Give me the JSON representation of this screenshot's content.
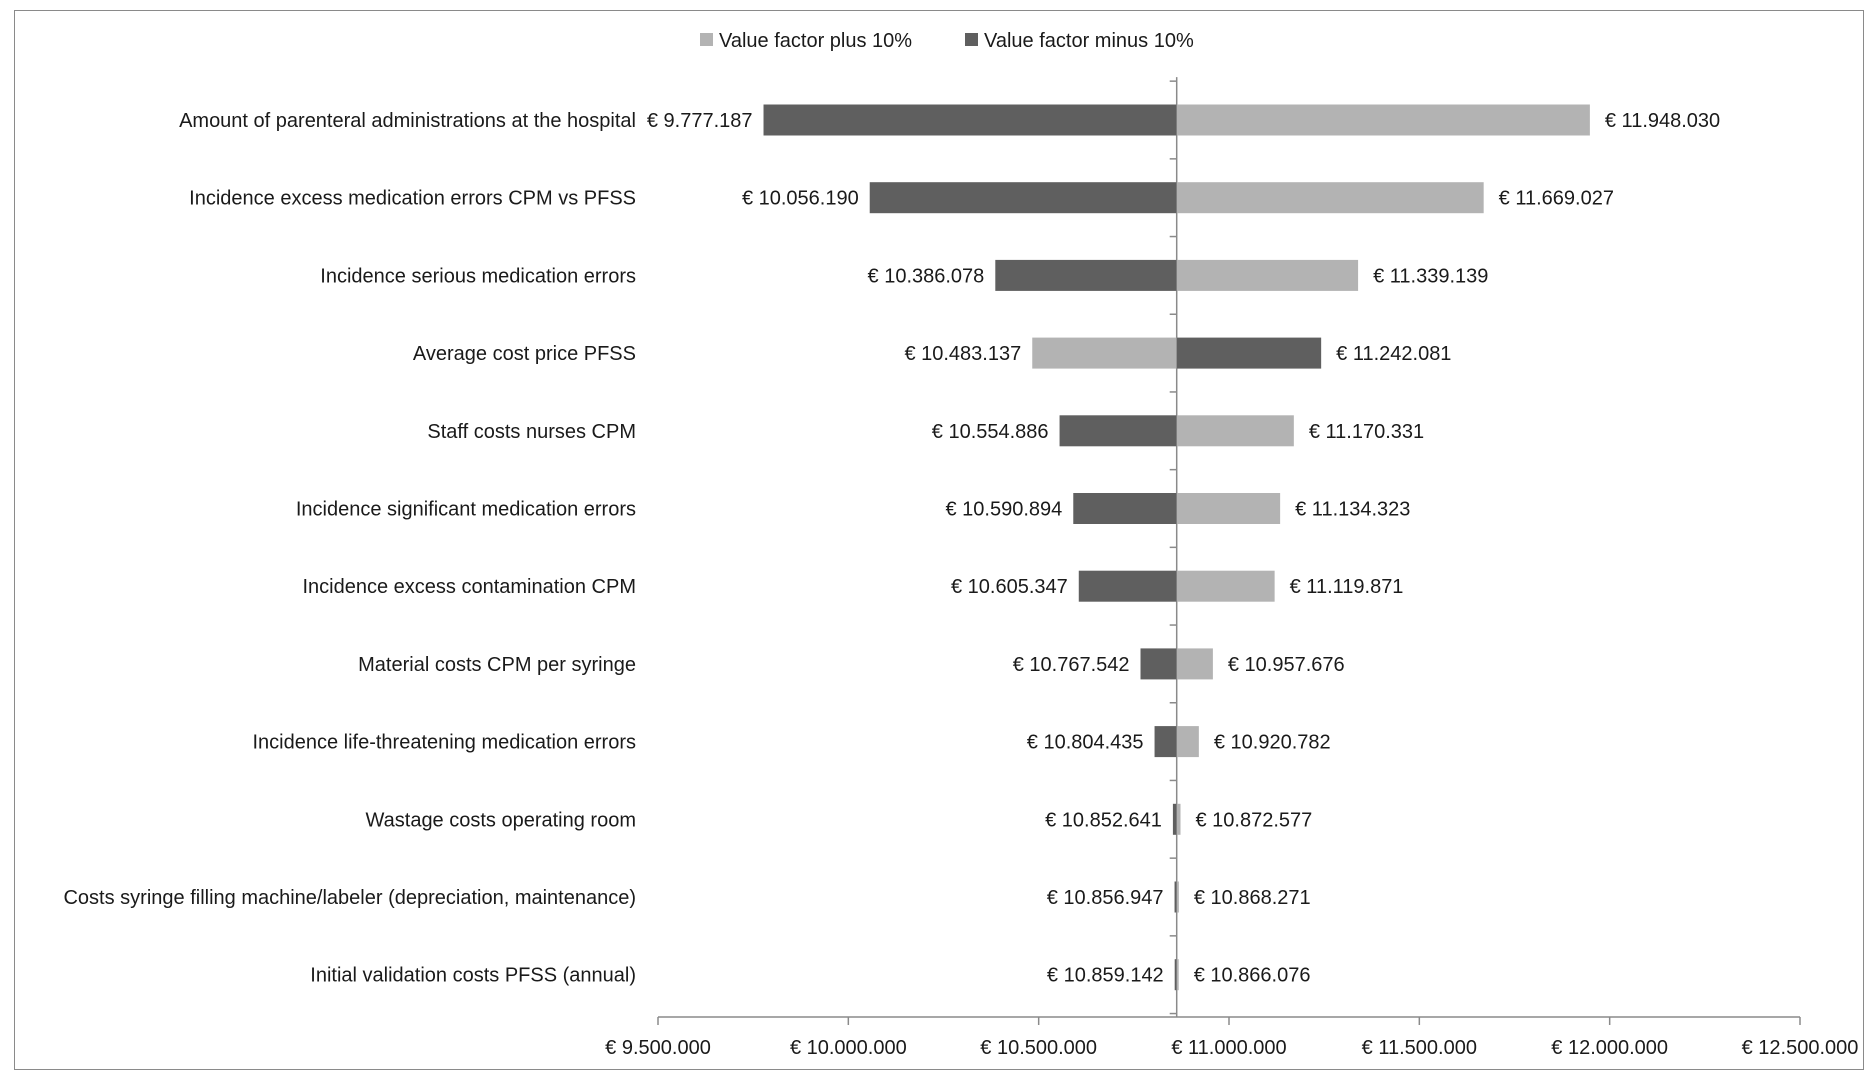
{
  "chart_data": {
    "type": "bar",
    "subtype": "tornado",
    "title": "",
    "xlabel": "",
    "ylabel": "",
    "baseline": 10862609,
    "xlim": [
      9500000,
      12500000
    ],
    "x_ticks": [
      9500000,
      10000000,
      10500000,
      11000000,
      11500000,
      12000000,
      12500000
    ],
    "x_tick_labels": [
      "€ 9.500.000",
      "€ 10.000.000",
      "€ 10.500.000",
      "€ 11.000.000",
      "€ 11.500.000",
      "€ 12.000.000",
      "€ 12.500.000"
    ],
    "legend_position": "top",
    "grid": false,
    "series": [
      {
        "name": "Value factor plus 10%",
        "color": "#b3b3b3"
      },
      {
        "name": "Value factor minus 10%",
        "color": "#5f5f5f"
      }
    ],
    "categories": [
      "Amount of parenteral administrations at the hospital",
      "Incidence excess medication errors CPM vs PFSS",
      "Incidence serious medication errors",
      "Average cost price PFSS",
      "Staff costs nurses CPM",
      "Incidence significant medication errors",
      "Incidence excess contamination CPM",
      "Material costs CPM per syringe",
      "Incidence life-threatening medication errors",
      "Wastage costs operating room",
      "Costs syringe filling machine/labeler (depreciation, maintenance)",
      "Initial validation costs PFSS (annual)"
    ],
    "rows": [
      {
        "low": 9777187,
        "low_label": "€ 9.777.187",
        "low_series": "Value factor minus 10%",
        "high": 11948030,
        "high_label": "€ 11.948.030",
        "high_series": "Value factor plus 10%"
      },
      {
        "low": 10056190,
        "low_label": "€ 10.056.190",
        "low_series": "Value factor minus 10%",
        "high": 11669027,
        "high_label": "€ 11.669.027",
        "high_series": "Value factor plus 10%"
      },
      {
        "low": 10386078,
        "low_label": "€ 10.386.078",
        "low_series": "Value factor minus 10%",
        "high": 11339139,
        "high_label": "€ 11.339.139",
        "high_series": "Value factor plus 10%"
      },
      {
        "low": 10483137,
        "low_label": "€ 10.483.137",
        "low_series": "Value factor plus 10%",
        "high": 11242081,
        "high_label": "€ 11.242.081",
        "high_series": "Value factor minus 10%"
      },
      {
        "low": 10554886,
        "low_label": "€ 10.554.886",
        "low_series": "Value factor minus 10%",
        "high": 11170331,
        "high_label": "€ 11.170.331",
        "high_series": "Value factor plus 10%"
      },
      {
        "low": 10590894,
        "low_label": "€ 10.590.894",
        "low_series": "Value factor minus 10%",
        "high": 11134323,
        "high_label": "€ 11.134.323",
        "high_series": "Value factor plus 10%"
      },
      {
        "low": 10605347,
        "low_label": "€ 10.605.347",
        "low_series": "Value factor minus 10%",
        "high": 11119871,
        "high_label": "€ 11.119.871",
        "high_series": "Value factor plus 10%"
      },
      {
        "low": 10767542,
        "low_label": "€ 10.767.542",
        "low_series": "Value factor minus 10%",
        "high": 10957676,
        "high_label": "€ 10.957.676",
        "high_series": "Value factor plus 10%"
      },
      {
        "low": 10804435,
        "low_label": "€ 10.804.435",
        "low_series": "Value factor minus 10%",
        "high": 10920782,
        "high_label": "€ 10.920.782",
        "high_series": "Value factor plus 10%"
      },
      {
        "low": 10852641,
        "low_label": "€ 10.852.641",
        "low_series": "Value factor minus 10%",
        "high": 10872577,
        "high_label": "€ 10.872.577",
        "high_series": "Value factor plus 10%"
      },
      {
        "low": 10856947,
        "low_label": "€ 10.856.947",
        "low_series": "Value factor minus 10%",
        "high": 10868271,
        "high_label": "€ 10.868.271",
        "high_series": "Value factor plus 10%"
      },
      {
        "low": 10859142,
        "low_label": "€ 10.859.142",
        "low_series": "Value factor minus 10%",
        "high": 10866076,
        "high_label": "€ 10.866.076",
        "high_series": "Value factor plus 10%"
      }
    ]
  }
}
